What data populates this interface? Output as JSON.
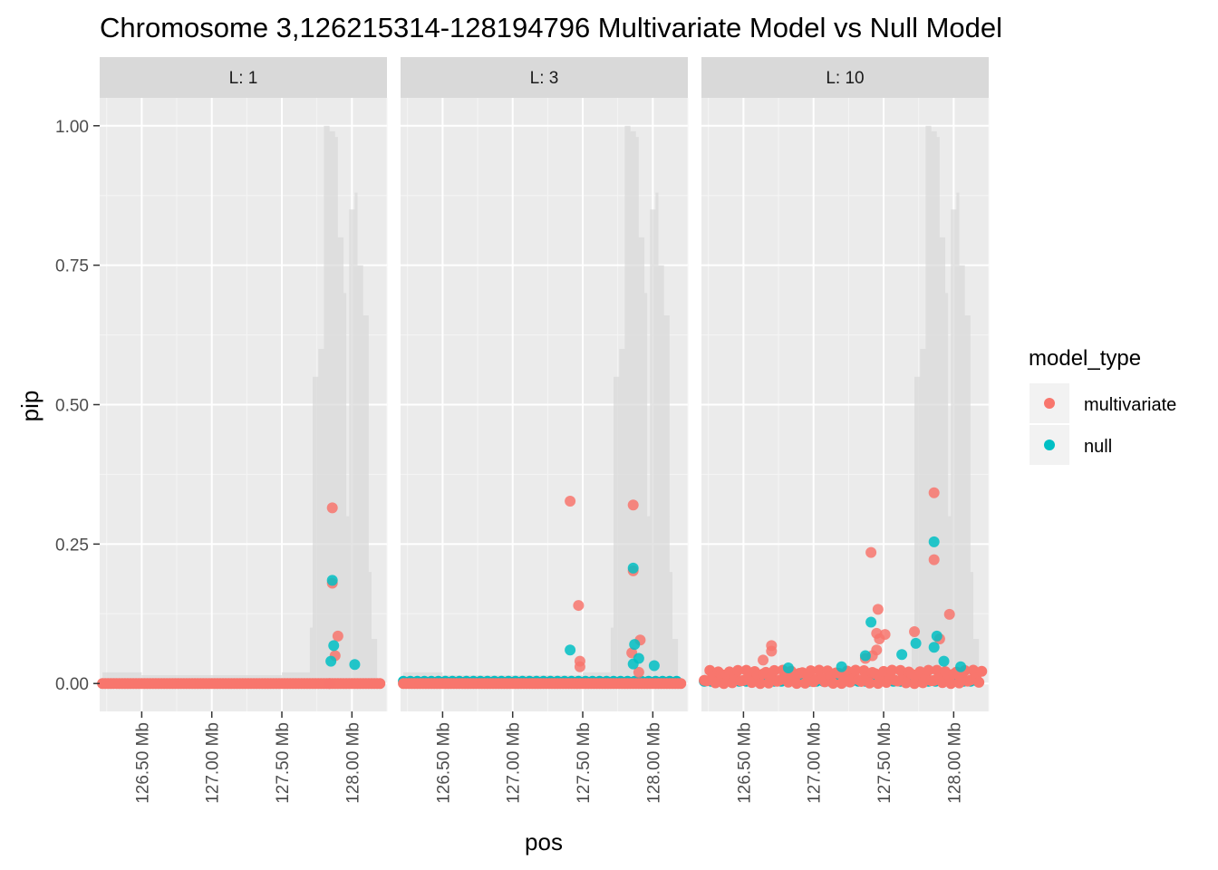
{
  "chart_data": {
    "type": "scatter",
    "title": "Chromosome 3,126215314-128194796 Multivariate Model vs Null Model",
    "xlabel": "pos",
    "ylabel": "pip",
    "xlim": [
      126.2,
      128.25
    ],
    "ylim": [
      -0.05,
      1.05
    ],
    "x_ticks": [
      126.5,
      127.0,
      127.5,
      128.0
    ],
    "x_tick_labels": [
      "126.50 Mb",
      "127.00 Mb",
      "127.50 Mb",
      "128.00 Mb"
    ],
    "y_ticks": [
      0.0,
      0.25,
      0.5,
      0.75,
      1.0
    ],
    "y_tick_labels": [
      "0.00",
      "0.25",
      "0.50",
      "0.75",
      "1.00"
    ],
    "grid": true,
    "legend": {
      "title": "model_type",
      "position": "right",
      "entries": [
        {
          "label": "multivariate",
          "color": "#F8766D"
        },
        {
          "label": "null",
          "color": "#00BFC4"
        }
      ]
    },
    "background_profile": {
      "description_in_data_units": true,
      "color": "#d9d9d9",
      "x": [
        126.22,
        126.3,
        126.5,
        127.0,
        127.5,
        127.7,
        127.72,
        127.76,
        127.8,
        127.84,
        127.88,
        127.9,
        127.94,
        127.96,
        127.98,
        128.02,
        128.04,
        128.08,
        128.12,
        128.14,
        128.18
      ],
      "y": [
        0.02,
        0.02,
        0.015,
        0.015,
        0.02,
        0.1,
        0.55,
        0.6,
        1.0,
        0.99,
        0.98,
        0.8,
        0.7,
        0.3,
        0.85,
        0.88,
        0.75,
        0.66,
        0.2,
        0.08,
        0.02
      ]
    },
    "panels": [
      {
        "strip": "L: 1",
        "series": [
          {
            "name": "multivariate",
            "color": "#F8766D",
            "x": [
              127.86,
              127.86,
              127.9,
              127.88,
              127.84
            ],
            "y": [
              0.315,
              0.18,
              0.085,
              0.05,
              0.0
            ]
          },
          {
            "name": "null",
            "color": "#00BFC4",
            "x": [
              127.86,
              127.87,
              128.02,
              127.85
            ],
            "y": [
              0.185,
              0.068,
              0.034,
              0.04
            ]
          }
        ],
        "baseline_multivariate_range": [
          126.22,
          128.2
        ],
        "baseline_null_range": [
          126.22,
          128.2
        ]
      },
      {
        "strip": "L: 3",
        "series": [
          {
            "name": "multivariate",
            "color": "#F8766D",
            "x": [
              127.41,
              127.86,
              127.86,
              127.47,
              127.91,
              127.48,
              127.48,
              127.85,
              127.9
            ],
            "y": [
              0.327,
              0.32,
              0.202,
              0.14,
              0.078,
              0.04,
              0.03,
              0.055,
              0.02
            ]
          },
          {
            "name": "null",
            "color": "#00BFC4",
            "x": [
              127.86,
              127.41,
              127.87,
              127.9,
              128.01,
              127.86
            ],
            "y": [
              0.207,
              0.06,
              0.07,
              0.045,
              0.032,
              0.035
            ]
          }
        ],
        "baseline_multivariate_range": [
          126.22,
          128.2
        ],
        "baseline_null_range": [
          126.22,
          128.2
        ]
      },
      {
        "strip": "L: 10",
        "series": [
          {
            "name": "multivariate",
            "color": "#F8766D",
            "x": [
              127.86,
              127.41,
              127.86,
              127.46,
              127.97,
              127.72,
              126.7,
              126.7,
              127.45,
              127.51,
              127.47,
              126.64,
              127.45,
              127.42,
              127.37,
              127.9
            ],
            "y": [
              0.342,
              0.235,
              0.222,
              0.133,
              0.124,
              0.093,
              0.068,
              0.058,
              0.09,
              0.088,
              0.08,
              0.042,
              0.06,
              0.05,
              0.045,
              0.08
            ]
          },
          {
            "name": "null",
            "color": "#00BFC4",
            "x": [
              127.86,
              127.41,
              127.63,
              127.88,
              127.86,
              127.73,
              127.37,
              127.93,
              127.2,
              126.82,
              128.05
            ],
            "y": [
              0.254,
              0.11,
              0.052,
              0.085,
              0.065,
              0.072,
              0.05,
              0.04,
              0.03,
              0.028,
              0.03
            ]
          }
        ],
        "baseline_multivariate_range": [
          126.22,
          128.2
        ],
        "baseline_null_range": [
          126.22,
          128.2
        ]
      }
    ]
  }
}
